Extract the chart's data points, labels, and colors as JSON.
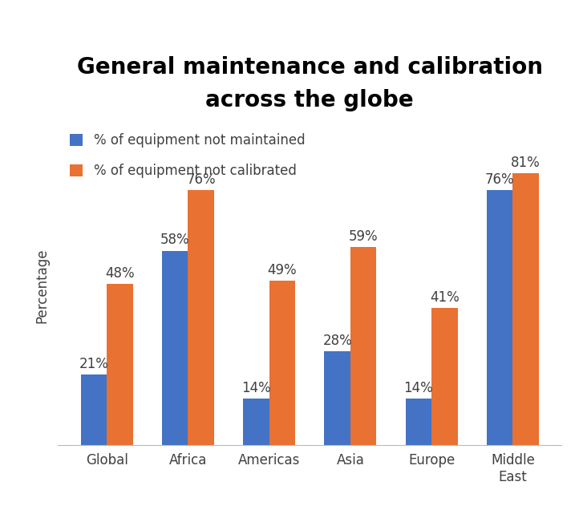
{
  "title": "General maintenance and calibration\nacross the globe",
  "categories": [
    "Global",
    "Africa",
    "Americas",
    "Asia",
    "Europe",
    "Middle\nEast"
  ],
  "not_maintained": [
    21,
    58,
    14,
    28,
    14,
    76
  ],
  "not_calibrated": [
    48,
    76,
    49,
    59,
    41,
    81
  ],
  "color_maintained": "#4472C4",
  "color_calibrated": "#E97132",
  "legend_maintained": "% of equipment not maintained",
  "legend_calibrated": "% of equipment not calibrated",
  "ylabel": "Percentage",
  "ylim": [
    0,
    95
  ],
  "bar_width": 0.32,
  "title_fontsize": 20,
  "label_fontsize": 12,
  "tick_fontsize": 12,
  "bar_label_fontsize": 12,
  "text_color": "#404040",
  "background_color": "#FFFFFF"
}
